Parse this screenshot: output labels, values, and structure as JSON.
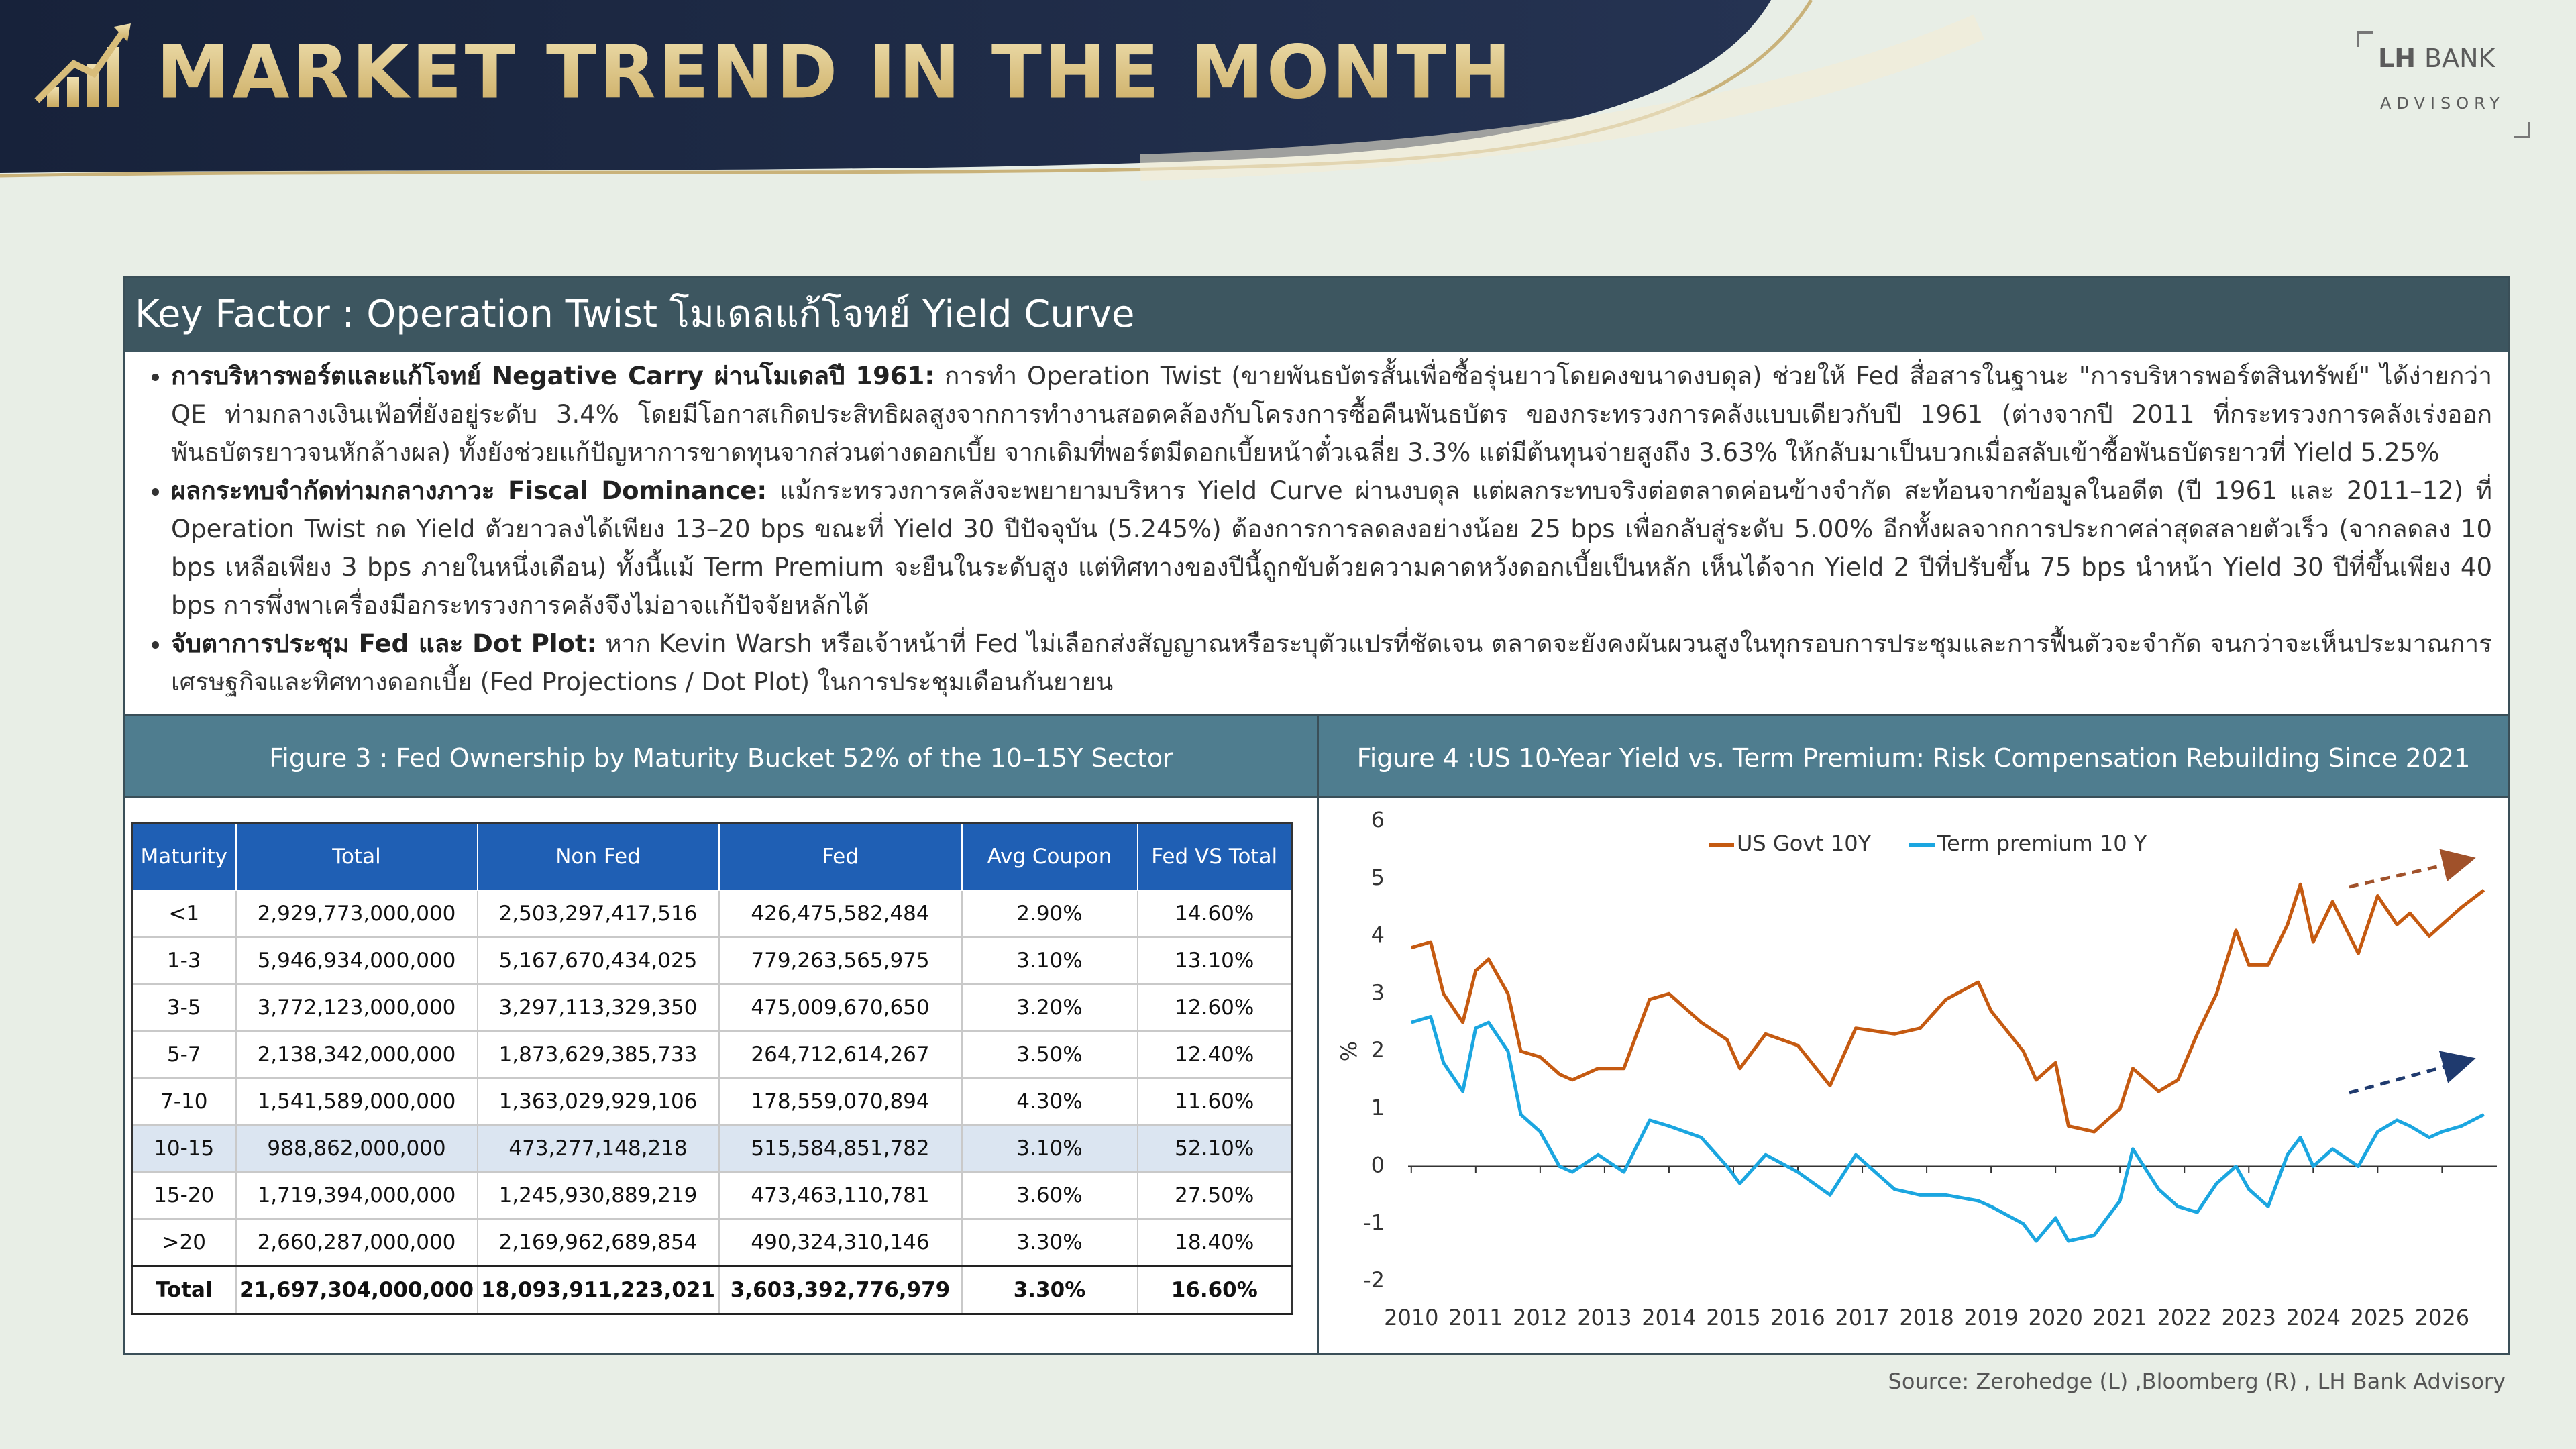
{
  "header": {
    "title": "MARKET TREND IN THE MONTH",
    "logo": {
      "primary": "LH",
      "secondary": "BANK",
      "tagline": "ADVISORY"
    }
  },
  "key_factor": {
    "title": "Key Factor : Operation Twist โมเดลแก้โจทย์ Yield Curve",
    "bullets": [
      {
        "heading": "การบริหารพอร์ตและแก้โจทย์ Negative Carry ผ่านโมเดลปี 1961:",
        "text": "การทำ Operation Twist (ขายพันธบัตรสั้นเพื่อซื้อรุ่นยาวโดยคงขนาดงบดุล) ช่วยให้ Fed สื่อสารในฐานะ \"การบริหารพอร์ตสินทรัพย์\" ได้ง่ายกว่า QE ท่ามกลางเงินเฟ้อที่ยังอยู่ระดับ 3.4% โดยมีโอกาสเกิดประสิทธิผลสูงจากการทำงานสอดคล้องกับโครงการซื้อคืนพันธบัตร ของกระทรวงการคลังแบบเดียวกับปี 1961 (ต่างจากปี 2011 ที่กระทรวงการคลังเร่งออกพันธบัตรยาวจนหักล้างผล) ทั้งยังช่วยแก้ปัญหาการขาดทุนจากส่วนต่างดอกเบี้ย จากเดิมที่พอร์ตมีดอกเบี้ยหน้าตั๋วเฉลี่ย 3.3% แต่มีต้นทุนจ่ายสูงถึง 3.63% ให้กลับมาเป็นบวกเมื่อสลับเข้าซื้อพันธบัตรยาวที่ Yield 5.25%"
      },
      {
        "heading": "ผลกระทบจำกัดท่ามกลางภาวะ Fiscal Dominance:",
        "text": "แม้กระทรวงการคลังจะพยายามบริหาร Yield Curve ผ่านงบดุล แต่ผลกระทบจริงต่อตลาดค่อนข้างจำกัด สะท้อนจากข้อมูลในอดีต (ปี 1961 และ 2011–12) ที่ Operation Twist กด Yield ตัวยาวลงได้เพียง 13–20 bps ขณะที่ Yield 30 ปีปัจจุบัน (5.245%) ต้องการการลดลงอย่างน้อย 25 bps เพื่อกลับสู่ระดับ 5.00% อีกทั้งผลจากการประกาศล่าสุดสลายตัวเร็ว (จากลดลง 10 bps เหลือเพียง 3 bps ภายในหนึ่งเดือน) ทั้งนี้แม้ Term Premium จะยืนในระดับสูง แต่ทิศทางของปีนี้ถูกขับด้วยความคาดหวังดอกเบี้ยเป็นหลัก เห็นได้จาก Yield 2 ปีที่ปรับขึ้น 75 bps นำหน้า Yield 30 ปีที่ขึ้นเพียง 40 bps การพึ่งพาเครื่องมือกระทรวงการคลังจึงไม่อาจแก้ปัจจัยหลักได้"
      },
      {
        "heading": "จับตาการประชุม Fed และ Dot Plot:",
        "text": "หาก Kevin Warsh หรือเจ้าหน้าที่ Fed ไม่เลือกส่งสัญญาณหรือระบุตัวแปรที่ชัดเจน ตลาดจะยังคงผันผวนสูงในทุกรอบการประชุมและการฟื้นตัวจะจำกัด จนกว่าจะเห็นประมาณการเศรษฐกิจและทิศทางดอกเบี้ย (Fed Projections / Dot Plot) ในการประชุมเดือนกันยายน"
      }
    ]
  },
  "figure3": {
    "title": "Figure 3 : Fed Ownership by Maturity Bucket 52% of the 10–15Y Sector",
    "table": {
      "header": [
        "Maturity",
        "Total",
        "Non Fed",
        "Fed",
        "Avg Coupon",
        "Fed VS Total"
      ],
      "rows": [
        [
          "<1",
          "2,929,773,000,000",
          "2,503,297,417,516",
          "426,475,582,484",
          "2.90%",
          "14.60%"
        ],
        [
          "1-3",
          "5,946,934,000,000",
          "5,167,670,434,025",
          "779,263,565,975",
          "3.10%",
          "13.10%"
        ],
        [
          "3-5",
          "3,772,123,000,000",
          "3,297,113,329,350",
          "475,009,670,650",
          "3.20%",
          "12.60%"
        ],
        [
          "5-7",
          "2,138,342,000,000",
          "1,873,629,385,733",
          "264,712,614,267",
          "3.50%",
          "12.40%"
        ],
        [
          "7-10",
          "1,541,589,000,000",
          "1,363,029,929,106",
          "178,559,070,894",
          "4.30%",
          "11.60%"
        ],
        [
          "10-15",
          "988,862,000,000",
          "473,277,148,218",
          "515,584,851,782",
          "3.10%",
          "52.10%"
        ],
        [
          "15-20",
          "1,719,394,000,000",
          "1,245,930,889,219",
          "473,463,110,781",
          "3.60%",
          "27.50%"
        ],
        [
          ">20",
          "2,660,287,000,000",
          "2,169,962,689,854",
          "490,324,310,146",
          "3.30%",
          "18.40%"
        ],
        [
          "Total",
          "21,697,304,000,000",
          "18,093,911,223,021",
          "3,603,392,776,979",
          "3.30%",
          "16.60%"
        ]
      ]
    }
  },
  "chart_data": {
    "type": "line",
    "title": "Figure 4 :US 10-Year Yield vs. Term Premium: Risk Compensation Rebuilding Since 2021",
    "y_label": "%",
    "x": [
      2010.0,
      2010.3,
      2010.5,
      2010.8,
      2011.0,
      2011.2,
      2011.5,
      2011.7,
      2012.0,
      2012.3,
      2012.5,
      2012.9,
      2013.3,
      2013.7,
      2014.0,
      2014.5,
      2014.9,
      2015.1,
      2015.5,
      2016.0,
      2016.5,
      2016.9,
      2017.5,
      2017.9,
      2018.3,
      2018.8,
      2019.0,
      2019.5,
      2019.7,
      2020.0,
      2020.2,
      2020.6,
      2021.0,
      2021.2,
      2021.6,
      2021.9,
      2022.2,
      2022.5,
      2022.8,
      2023.0,
      2023.3,
      2023.6,
      2023.8,
      2024.0,
      2024.3,
      2024.7,
      2025.0,
      2025.3,
      2025.5,
      2025.8,
      2026.0,
      2026.3,
      2026.65
    ],
    "series": [
      {
        "name": "US Govt 10Y",
        "color": "#c55a11",
        "values": [
          3.8,
          3.9,
          3.0,
          2.5,
          3.4,
          3.6,
          3.0,
          2.0,
          1.9,
          1.6,
          1.5,
          1.7,
          1.7,
          2.9,
          3.0,
          2.5,
          2.2,
          1.7,
          2.3,
          2.1,
          1.4,
          2.4,
          2.3,
          2.4,
          2.9,
          3.2,
          2.7,
          2.0,
          1.5,
          1.8,
          0.7,
          0.6,
          1.0,
          1.7,
          1.3,
          1.5,
          2.3,
          3.0,
          4.1,
          3.5,
          3.5,
          4.2,
          4.9,
          3.9,
          4.6,
          3.7,
          4.7,
          4.2,
          4.4,
          4.0,
          4.2,
          4.5,
          4.8
        ]
      },
      {
        "name": "Term premium 10 Y",
        "color": "#1ba6e0",
        "values": [
          2.5,
          2.6,
          1.8,
          1.3,
          2.4,
          2.5,
          2.0,
          0.9,
          0.6,
          0.0,
          -0.1,
          0.2,
          -0.1,
          0.8,
          0.7,
          0.5,
          0.0,
          -0.3,
          0.2,
          -0.1,
          -0.5,
          0.2,
          -0.4,
          -0.5,
          -0.5,
          -0.6,
          -0.7,
          -1.0,
          -1.3,
          -0.9,
          -1.3,
          -1.2,
          -0.6,
          0.3,
          -0.4,
          -0.7,
          -0.8,
          -0.3,
          0.0,
          -0.4,
          -0.7,
          0.2,
          0.5,
          0.0,
          0.3,
          0.0,
          0.6,
          0.8,
          0.7,
          0.5,
          0.6,
          0.7,
          0.9
        ]
      }
    ],
    "xlim": [
      2009.95,
      2026.85
    ],
    "xticks": [
      2010,
      2011,
      2012,
      2013,
      2014,
      2015,
      2016,
      2017,
      2018,
      2019,
      2020,
      2021,
      2022,
      2023,
      2024,
      2025,
      2026
    ],
    "ylim": [
      -2,
      6
    ],
    "yticks": [
      -2,
      -1,
      0,
      1,
      2,
      3,
      4,
      5,
      6
    ],
    "grid": false,
    "legend": "top"
  },
  "source": "Source: Zerohedge (L) ,Bloomberg (R) , LH Bank Advisory"
}
